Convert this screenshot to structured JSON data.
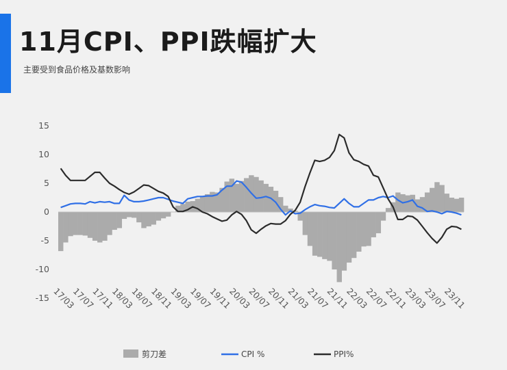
{
  "header": {
    "title": "11月CPI、PPI跌幅扩大",
    "subtitle": "主要受到食品价格及基数影响"
  },
  "colors": {
    "accent": "#1a73e8",
    "spread": "#ababab",
    "cpi": "#2f6fe6",
    "ppi": "#2b2b2b"
  },
  "chart_data": {
    "type": "line",
    "ylim": [
      -15,
      15
    ],
    "yticks": [
      15,
      10,
      5,
      0,
      -5,
      -10,
      -15
    ],
    "x_tick_labels": [
      "17/03",
      "17/07",
      "17/11",
      "18/03",
      "18/07",
      "18/11",
      "19/03",
      "19/07",
      "19/11",
      "20/03",
      "20/07",
      "20/11",
      "21/03",
      "21/07",
      "21/11",
      "22/03",
      "22/07",
      "22/11",
      "23/03",
      "23/07",
      "23/11"
    ],
    "x": [
      "17/01",
      "17/02",
      "17/03",
      "17/04",
      "17/05",
      "17/06",
      "17/07",
      "17/08",
      "17/09",
      "17/10",
      "17/11",
      "17/12",
      "18/01",
      "18/02",
      "18/03",
      "18/04",
      "18/05",
      "18/06",
      "18/07",
      "18/08",
      "18/09",
      "18/10",
      "18/11",
      "18/12",
      "19/01",
      "19/02",
      "19/03",
      "19/04",
      "19/05",
      "19/06",
      "19/07",
      "19/08",
      "19/09",
      "19/10",
      "19/11",
      "19/12",
      "20/01",
      "20/02",
      "20/03",
      "20/04",
      "20/05",
      "20/06",
      "20/07",
      "20/08",
      "20/09",
      "20/10",
      "20/11",
      "20/12",
      "21/01",
      "21/02",
      "21/03",
      "21/04",
      "21/05",
      "21/06",
      "21/07",
      "21/08",
      "21/09",
      "21/10",
      "21/11",
      "21/12",
      "22/01",
      "22/02",
      "22/03",
      "22/04",
      "22/05",
      "22/06",
      "22/07",
      "22/08",
      "22/09",
      "22/10",
      "22/11",
      "22/12",
      "23/01",
      "23/02",
      "23/03",
      "23/04",
      "23/05",
      "23/06",
      "23/07",
      "23/08",
      "23/09",
      "23/10",
      "23/11"
    ],
    "series": [
      {
        "name": "剪刀差",
        "type": "bar",
        "values": [
          -6.8,
          -5.3,
          -4.2,
          -4.0,
          -4.0,
          -4.1,
          -4.5,
          -5.0,
          -5.3,
          -5.0,
          -4.0,
          -3.1,
          -2.8,
          -1.2,
          -0.9,
          -1.0,
          -1.8,
          -2.8,
          -2.5,
          -2.2,
          -1.5,
          -1.1,
          -0.8,
          0.0,
          1.1,
          1.4,
          1.8,
          1.9,
          2.3,
          2.7,
          3.1,
          3.5,
          3.4,
          4.2,
          5.3,
          5.8,
          4.9,
          5.4,
          5.9,
          6.4,
          6.1,
          5.5,
          4.9,
          4.4,
          3.7,
          2.6,
          1.1,
          0.6,
          0.2,
          -1.5,
          -4.0,
          -5.9,
          -7.6,
          -7.8,
          -8.2,
          -8.5,
          -10.0,
          -12.2,
          -10.2,
          -8.8,
          -8.0,
          -6.9,
          -6.0,
          -5.9,
          -4.4,
          -3.7,
          -1.5,
          0.7,
          1.7,
          3.4,
          3.1,
          2.9,
          3.0,
          2.2,
          2.6,
          3.4,
          4.2,
          5.2,
          4.7,
          3.2,
          2.5,
          2.3,
          2.5
        ]
      },
      {
        "name": "CPI %",
        "type": "line",
        "values": [
          0.8,
          1.1,
          1.4,
          1.5,
          1.5,
          1.4,
          1.8,
          1.6,
          1.8,
          1.7,
          1.8,
          1.5,
          1.5,
          2.9,
          2.1,
          1.8,
          1.8,
          1.9,
          2.1,
          2.3,
          2.5,
          2.5,
          2.2,
          1.9,
          1.7,
          1.5,
          2.3,
          2.5,
          2.7,
          2.7,
          2.8,
          2.8,
          3.0,
          3.8,
          4.5,
          4.5,
          5.4,
          5.2,
          4.3,
          3.3,
          2.4,
          2.5,
          2.7,
          2.4,
          1.7,
          0.5,
          -0.5,
          0.2,
          -0.3,
          -0.2,
          0.4,
          0.9,
          1.3,
          1.1,
          1.0,
          0.8,
          0.7,
          1.5,
          2.3,
          1.5,
          0.9,
          0.9,
          1.5,
          2.1,
          2.1,
          2.5,
          2.7,
          2.5,
          2.8,
          2.1,
          1.6,
          1.8,
          2.1,
          1.0,
          0.7,
          0.1,
          0.2,
          0.0,
          -0.3,
          0.1,
          0.0,
          -0.2,
          -0.5
        ]
      },
      {
        "name": "PPI%",
        "type": "line",
        "values": [
          7.6,
          6.4,
          5.5,
          5.5,
          5.5,
          5.5,
          6.2,
          6.9,
          6.9,
          5.9,
          5.0,
          4.5,
          3.9,
          3.4,
          3.1,
          3.5,
          4.1,
          4.7,
          4.6,
          4.1,
          3.6,
          3.3,
          2.7,
          0.9,
          0.1,
          0.1,
          0.4,
          0.9,
          0.6,
          0.0,
          -0.3,
          -0.8,
          -1.2,
          -1.6,
          -1.4,
          -0.5,
          0.1,
          -0.4,
          -1.5,
          -3.1,
          -3.7,
          -3.0,
          -2.4,
          -2.0,
          -2.1,
          -2.1,
          -1.5,
          -0.4,
          0.3,
          1.7,
          4.4,
          6.8,
          9.0,
          8.8,
          9.0,
          9.5,
          10.7,
          13.5,
          12.9,
          10.3,
          9.1,
          8.8,
          8.3,
          8.0,
          6.4,
          6.1,
          4.2,
          2.3,
          0.9,
          -1.3,
          -1.3,
          -0.7,
          -0.8,
          -1.4,
          -2.5,
          -3.6,
          -4.6,
          -5.4,
          -4.4,
          -3.0,
          -2.5,
          -2.6,
          -3.0
        ]
      }
    ],
    "legend": [
      "剪刀差",
      "CPI %",
      "PPI%"
    ],
    "legend_position": "bottom",
    "grid": false
  }
}
